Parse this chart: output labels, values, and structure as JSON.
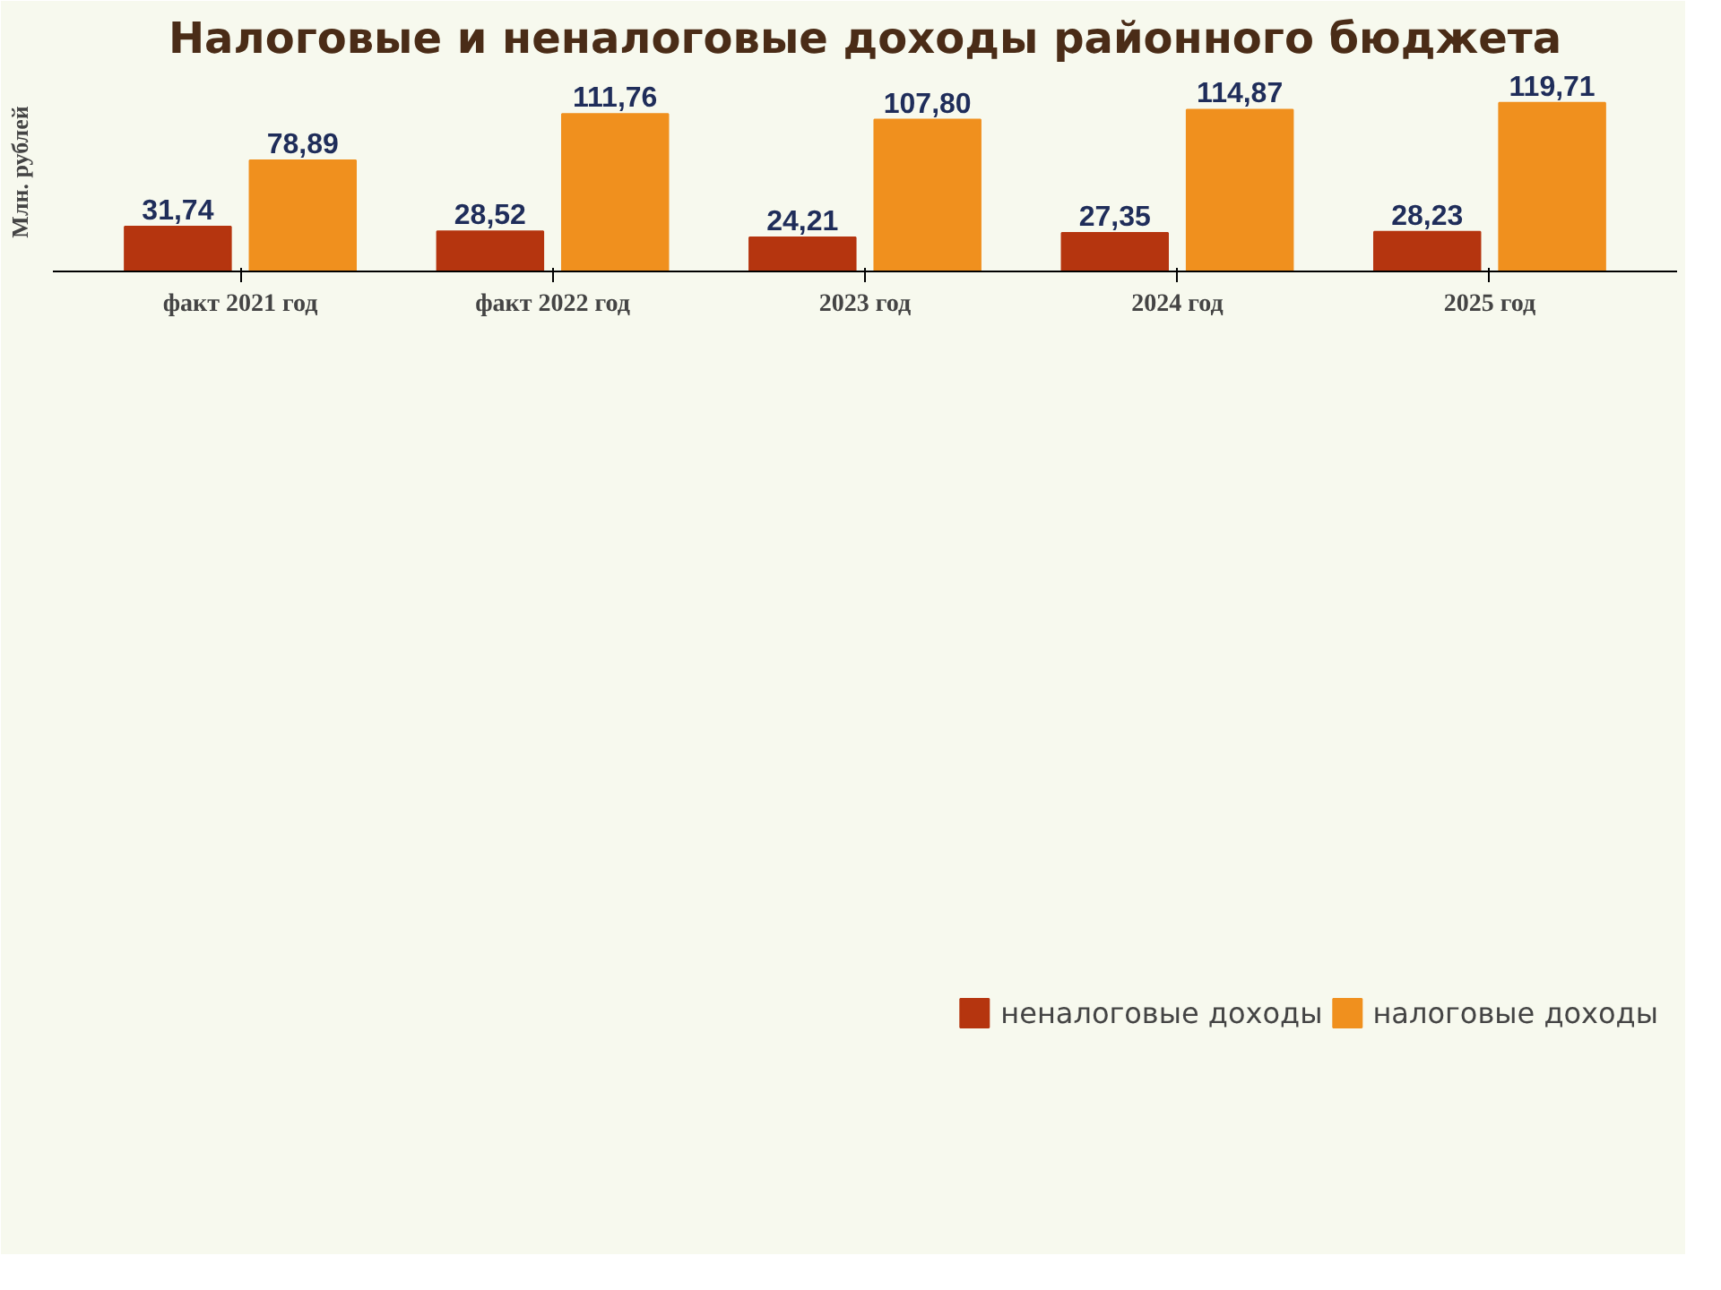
{
  "chart_data": {
    "type": "bar",
    "title": "Налоговые и неналоговые доходы районного бюджета",
    "ylabel": "Млн. рублей",
    "categories": [
      "факт 2021 год",
      "факт 2022 год",
      "2023 год",
      "2024 год",
      "2025 год"
    ],
    "series": [
      {
        "name": "неналоговые доходы",
        "color": "#b5350f",
        "values": [
          31.74,
          28.52,
          24.21,
          27.35,
          28.23
        ],
        "value_labels": [
          "31,74",
          "28,52",
          "24,21",
          "27,35",
          "28,23"
        ]
      },
      {
        "name": "налоговые доходы",
        "color": "#f0901e",
        "values": [
          78.89,
          111.76,
          107.8,
          114.87,
          119.71
        ],
        "value_labels": [
          "78,89",
          "111,76",
          "107,80",
          "114,87",
          "119,71"
        ]
      }
    ],
    "legend": "bottom right"
  }
}
